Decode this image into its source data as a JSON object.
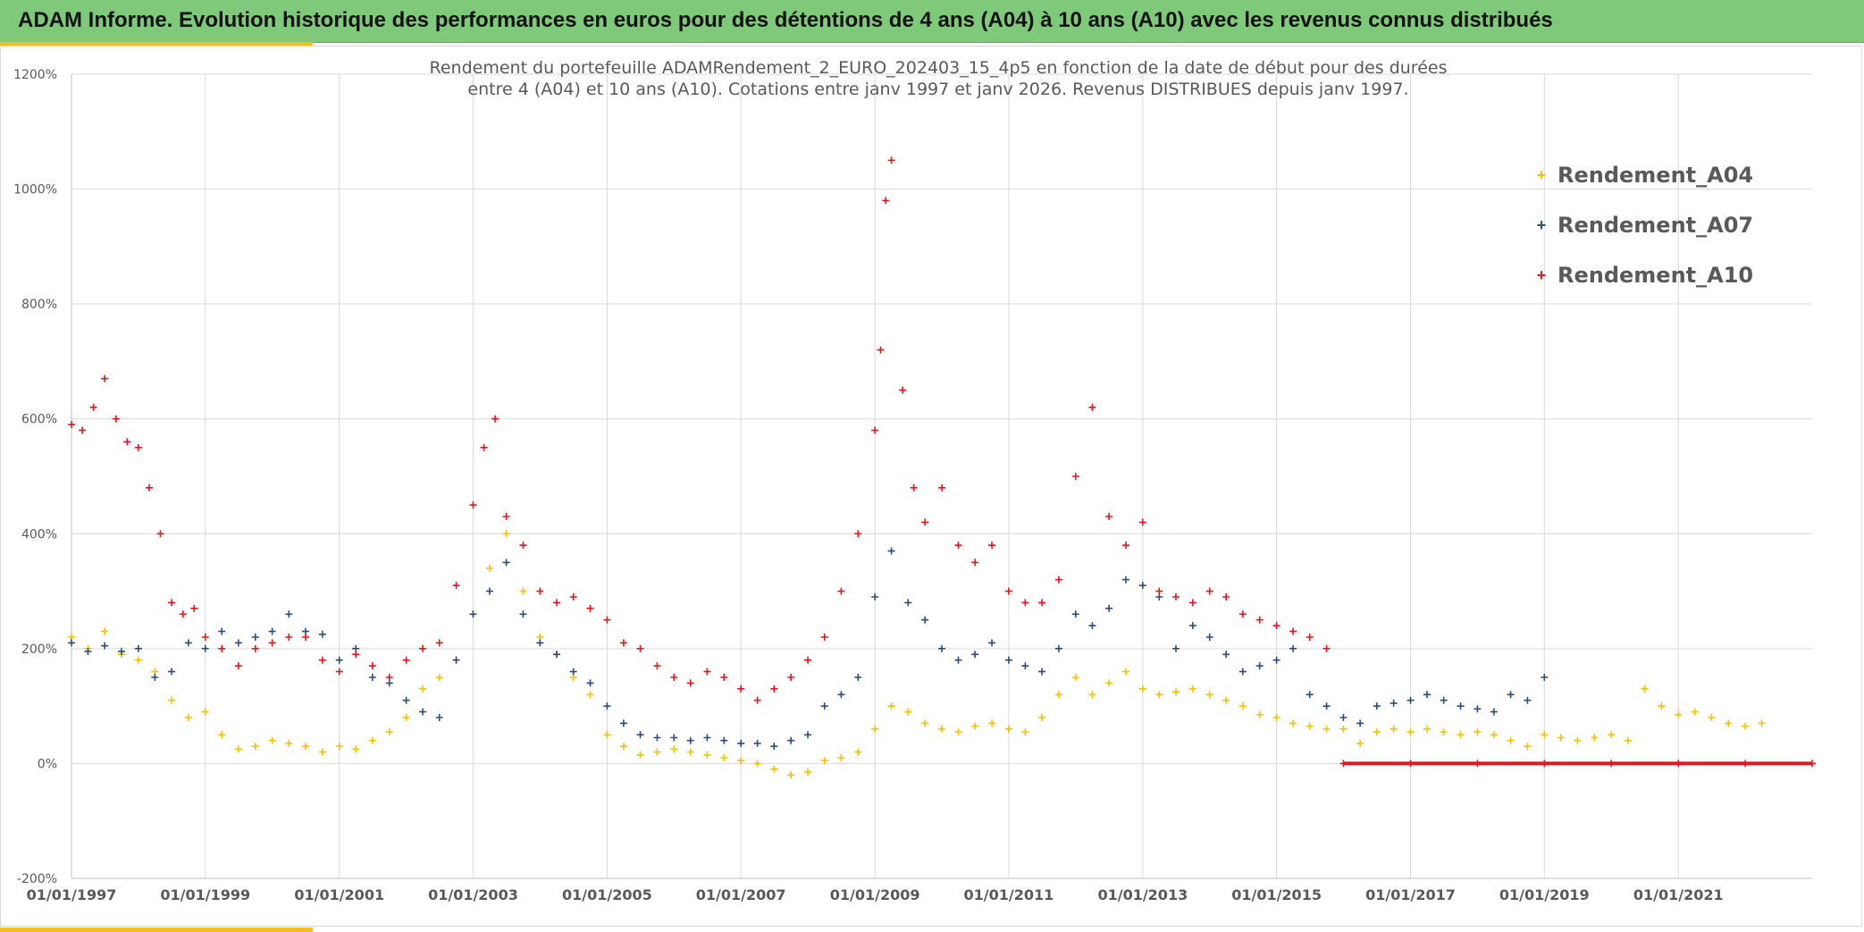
{
  "banner": {
    "title": "ADAM Informe. Evolution historique des performances en euros pour des détentions de 4 ans (A04) à 10 ans (A10) avec les revenus connus distribués"
  },
  "colors": {
    "banner_bg": "#7ec97a",
    "accent": "#f2be22",
    "A04": "#f5c000",
    "A07": "#2f4b7c",
    "A10": "#e8131b",
    "grid": "#d9d9d9"
  },
  "chart_data": {
    "type": "scatter",
    "marker": "plus",
    "title_lines": [
      "Rendement du portefeuille ADAMRendement_2_EURO_202403_15_4p5  en fonction de la date de début pour des durées",
      "entre 4 (A04) et 10 ans (A10). Cotations entre janv 1997 et janv 2026. Revenus DISTRIBUES depuis janv 1997."
    ],
    "xlabel": "",
    "ylabel": "",
    "x_range": [
      "1997-01-01",
      "2023-01-01"
    ],
    "y_range": [
      -200,
      1200
    ],
    "grid": true,
    "legend_position": "top-right",
    "x_ticks": [
      "01/01/1997",
      "01/01/1999",
      "01/01/2001",
      "01/01/2003",
      "01/01/2005",
      "01/01/2007",
      "01/01/2009",
      "01/01/2011",
      "01/01/2013",
      "01/01/2015",
      "01/01/2017",
      "01/01/2019",
      "01/01/2021"
    ],
    "y_ticks": [
      "-200%",
      "0%",
      "200%",
      "400%",
      "600%",
      "800%",
      "1000%",
      "1200%"
    ],
    "series": [
      {
        "name": "Rendement_A04",
        "x": [
          "1997-01-01",
          "1997-04-01",
          "1997-07-01",
          "1997-10-01",
          "1998-01-01",
          "1998-04-01",
          "1998-07-01",
          "1998-10-01",
          "1999-01-01",
          "1999-04-01",
          "1999-07-01",
          "1999-10-01",
          "2000-01-01",
          "2000-04-01",
          "2000-07-01",
          "2000-10-01",
          "2001-01-01",
          "2001-04-01",
          "2001-07-01",
          "2001-10-01",
          "2002-01-01",
          "2002-04-01",
          "2002-07-01",
          "2002-10-01",
          "2003-01-01",
          "2003-04-01",
          "2003-07-01",
          "2003-10-01",
          "2004-01-01",
          "2004-04-01",
          "2004-07-01",
          "2004-10-01",
          "2005-01-01",
          "2005-04-01",
          "2005-07-01",
          "2005-10-01",
          "2006-01-01",
          "2006-04-01",
          "2006-07-01",
          "2006-10-01",
          "2007-01-01",
          "2007-04-01",
          "2007-07-01",
          "2007-10-01",
          "2008-01-01",
          "2008-04-01",
          "2008-07-01",
          "2008-10-01",
          "2009-01-01",
          "2009-04-01",
          "2009-07-01",
          "2009-10-01",
          "2010-01-01",
          "2010-04-01",
          "2010-07-01",
          "2010-10-01",
          "2011-01-01",
          "2011-04-01",
          "2011-07-01",
          "2011-10-01",
          "2012-01-01",
          "2012-04-01",
          "2012-07-01",
          "2012-10-01",
          "2013-01-01",
          "2013-04-01",
          "2013-07-01",
          "2013-10-01",
          "2014-01-01",
          "2014-04-01",
          "2014-07-01",
          "2014-10-01",
          "2015-01-01",
          "2015-04-01",
          "2015-07-01",
          "2015-10-01",
          "2016-01-01",
          "2016-04-01",
          "2016-07-01",
          "2016-10-01",
          "2017-01-01",
          "2017-04-01",
          "2017-07-01",
          "2017-10-01",
          "2018-01-01",
          "2018-04-01",
          "2018-07-01",
          "2018-10-01",
          "2019-01-01",
          "2019-04-01",
          "2019-07-01",
          "2019-10-01",
          "2020-01-01",
          "2020-04-01",
          "2020-07-01",
          "2020-10-01",
          "2021-01-01",
          "2021-04-01",
          "2021-07-01",
          "2021-10-01",
          "2022-01-01",
          "2022-04-01"
        ],
        "values": [
          220,
          200,
          230,
          190,
          180,
          160,
          110,
          80,
          90,
          50,
          25,
          30,
          40,
          35,
          30,
          20,
          30,
          25,
          40,
          55,
          80,
          130,
          150,
          180,
          260,
          340,
          400,
          300,
          220,
          190,
          150,
          120,
          50,
          30,
          15,
          20,
          25,
          20,
          15,
          10,
          5,
          0,
          -10,
          -20,
          -15,
          5,
          10,
          20,
          60,
          100,
          90,
          70,
          60,
          55,
          65,
          70,
          60,
          55,
          80,
          120,
          150,
          120,
          140,
          160,
          130,
          120,
          125,
          130,
          120,
          110,
          100,
          85,
          80,
          70,
          65,
          60,
          60,
          35,
          55,
          60,
          55,
          60,
          55,
          50,
          55,
          50,
          40,
          30,
          50,
          45,
          40,
          45,
          50,
          40,
          130,
          100,
          85,
          90,
          80,
          70,
          65,
          70
        ]
      },
      {
        "name": "Rendement_A07",
        "x": [
          "1997-01-01",
          "1997-04-01",
          "1997-07-01",
          "1997-10-01",
          "1998-01-01",
          "1998-04-01",
          "1998-07-01",
          "1998-10-01",
          "1999-01-01",
          "1999-04-01",
          "1999-07-01",
          "1999-10-01",
          "2000-01-01",
          "2000-04-01",
          "2000-07-01",
          "2000-10-01",
          "2001-01-01",
          "2001-04-01",
          "2001-07-01",
          "2001-10-01",
          "2002-01-01",
          "2002-04-01",
          "2002-07-01",
          "2002-10-01",
          "2003-01-01",
          "2003-04-01",
          "2003-07-01",
          "2003-10-01",
          "2004-01-01",
          "2004-04-01",
          "2004-07-01",
          "2004-10-01",
          "2005-01-01",
          "2005-04-01",
          "2005-07-01",
          "2005-10-01",
          "2006-01-01",
          "2006-04-01",
          "2006-07-01",
          "2006-10-01",
          "2007-01-01",
          "2007-04-01",
          "2007-07-01",
          "2007-10-01",
          "2008-01-01",
          "2008-04-01",
          "2008-07-01",
          "2008-10-01",
          "2009-01-01",
          "2009-04-01",
          "2009-07-01",
          "2009-10-01",
          "2010-01-01",
          "2010-04-01",
          "2010-07-01",
          "2010-10-01",
          "2011-01-01",
          "2011-04-01",
          "2011-07-01",
          "2011-10-01",
          "2012-01-01",
          "2012-04-01",
          "2012-07-01",
          "2012-10-01",
          "2013-01-01",
          "2013-04-01",
          "2013-07-01",
          "2013-10-01",
          "2014-01-01",
          "2014-04-01",
          "2014-07-01",
          "2014-10-01",
          "2015-01-01",
          "2015-04-01",
          "2015-07-01",
          "2015-10-01",
          "2016-01-01",
          "2016-04-01",
          "2016-07-01",
          "2016-10-01",
          "2017-01-01",
          "2017-04-01",
          "2017-07-01",
          "2017-10-01",
          "2018-01-01",
          "2018-04-01",
          "2018-07-01",
          "2018-10-01",
          "2019-01-01"
        ],
        "values": [
          210,
          195,
          205,
          195,
          200,
          150,
          160,
          210,
          200,
          230,
          210,
          220,
          230,
          260,
          230,
          225,
          180,
          200,
          150,
          140,
          110,
          90,
          80,
          180,
          260,
          300,
          350,
          260,
          210,
          190,
          160,
          140,
          100,
          70,
          50,
          45,
          45,
          40,
          45,
          40,
          35,
          35,
          30,
          40,
          50,
          100,
          120,
          150,
          290,
          370,
          280,
          250,
          200,
          180,
          190,
          210,
          180,
          170,
          160,
          200,
          260,
          240,
          270,
          320,
          310,
          290,
          200,
          240,
          220,
          190,
          160,
          170,
          180,
          200,
          120,
          100,
          80,
          70,
          100,
          105,
          110,
          120,
          110,
          100,
          95,
          90,
          120,
          110,
          150
        ]
      },
      {
        "name": "Rendement_A10",
        "x": [
          "1997-01-01",
          "1997-03-01",
          "1997-05-01",
          "1997-07-01",
          "1997-09-01",
          "1997-11-01",
          "1998-01-01",
          "1998-03-01",
          "1998-05-01",
          "1998-07-01",
          "1998-09-01",
          "1998-11-01",
          "1999-01-01",
          "1999-04-01",
          "1999-07-01",
          "1999-10-01",
          "2000-01-01",
          "2000-04-01",
          "2000-07-01",
          "2000-10-01",
          "2001-01-01",
          "2001-04-01",
          "2001-07-01",
          "2001-10-01",
          "2002-01-01",
          "2002-04-01",
          "2002-07-01",
          "2002-10-01",
          "2003-01-01",
          "2003-03-01",
          "2003-05-01",
          "2003-07-01",
          "2003-10-01",
          "2004-01-01",
          "2004-04-01",
          "2004-07-01",
          "2004-10-01",
          "2005-01-01",
          "2005-04-01",
          "2005-07-01",
          "2005-10-01",
          "2006-01-01",
          "2006-04-01",
          "2006-07-01",
          "2006-10-01",
          "2007-01-01",
          "2007-04-01",
          "2007-07-01",
          "2007-10-01",
          "2008-01-01",
          "2008-04-01",
          "2008-07-01",
          "2008-10-01",
          "2009-01-01",
          "2009-02-01",
          "2009-03-01",
          "2009-04-01",
          "2009-06-01",
          "2009-08-01",
          "2009-10-01",
          "2010-01-01",
          "2010-04-01",
          "2010-07-01",
          "2010-10-01",
          "2011-01-01",
          "2011-04-01",
          "2011-07-01",
          "2011-10-01",
          "2012-01-01",
          "2012-04-01",
          "2012-07-01",
          "2012-10-01",
          "2013-01-01",
          "2013-04-01",
          "2013-07-01",
          "2013-10-01",
          "2014-01-01",
          "2014-04-01",
          "2014-07-01",
          "2014-10-01",
          "2015-01-01",
          "2015-04-01",
          "2015-07-01",
          "2015-10-01"
        ],
        "values": [
          590,
          580,
          620,
          670,
          600,
          560,
          550,
          480,
          400,
          280,
          260,
          270,
          220,
          200,
          170,
          200,
          210,
          220,
          220,
          180,
          160,
          190,
          170,
          150,
          180,
          200,
          210,
          310,
          450,
          550,
          600,
          430,
          380,
          300,
          280,
          290,
          270,
          250,
          210,
          200,
          170,
          150,
          140,
          160,
          150,
          130,
          110,
          130,
          150,
          180,
          220,
          300,
          400,
          580,
          720,
          980,
          1050,
          650,
          480,
          420,
          480,
          380,
          350,
          380,
          300,
          280,
          280,
          320,
          500,
          620,
          430,
          380,
          420,
          300,
          290,
          280,
          300,
          290,
          260,
          250,
          240,
          230,
          220,
          200
        ]
      },
      {
        "name": "",
        "x": [
          "2016-01-01",
          "2017-01-01",
          "2018-01-01",
          "2019-01-01",
          "2020-01-01",
          "2021-01-01",
          "2022-01-01",
          "2023-01-01"
        ],
        "values": [
          0,
          0,
          0,
          0,
          0,
          0,
          0,
          0
        ]
      }
    ]
  }
}
